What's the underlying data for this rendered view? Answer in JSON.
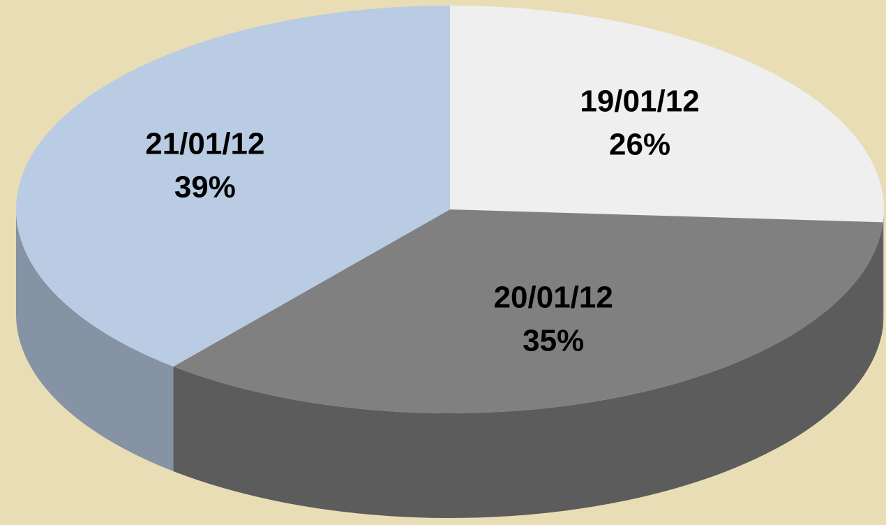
{
  "chart_data": {
    "type": "pie",
    "categories": [
      "19/01/12",
      "20/01/12",
      "21/01/12"
    ],
    "values": [
      26,
      35,
      39
    ],
    "value_labels": [
      "26%",
      "35%",
      "39%"
    ],
    "colors": [
      "#efefef",
      "#808080",
      "#b9cce4"
    ],
    "background": "#e9ddb5",
    "three_d": true
  }
}
